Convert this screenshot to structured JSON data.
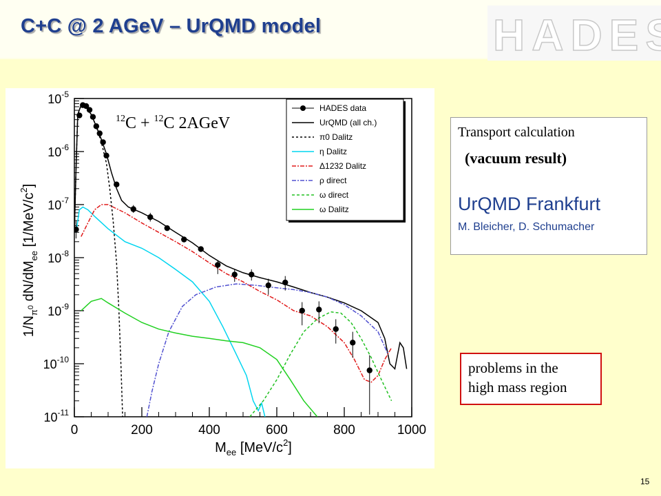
{
  "slide": {
    "title": "C+C @ 2 AGeV – UrQMD model",
    "logo_text": "HADES",
    "page_number": "15"
  },
  "note_box": {
    "line1": "Transport calculation",
    "line2": "(vacuum result)",
    "line3": "UrQMD Frankfurt",
    "line4": "M. Bleicher, D. Schumacher"
  },
  "problem_box": {
    "line1": "problems in the",
    "line2": "high mass region"
  },
  "colors": {
    "title": "#1f3f8f",
    "note_accent": "#1f3f8f",
    "problem_border": "#d01010",
    "background": "#ffffcc"
  },
  "chart_data": {
    "type": "line",
    "annotation": "12C + 12C   2AGeV",
    "xlabel": "M_ee [MeV/c2]",
    "ylabel": "1/N_pi0 dN/dM_ee [1/MeV/c2]",
    "xlim": [
      0,
      1000
    ],
    "ylim": [
      1e-11,
      1e-05
    ],
    "yscale": "log",
    "grid": false,
    "legend_position": "top-right",
    "x_ticks": [
      0,
      200,
      400,
      600,
      800,
      1000
    ],
    "y_ticks": [
      {
        "value": 1e-05,
        "base": "10",
        "exp": "-5"
      },
      {
        "value": 1e-06,
        "base": "10",
        "exp": "-6"
      },
      {
        "value": 1e-07,
        "base": "10",
        "exp": "-7"
      },
      {
        "value": 1e-08,
        "base": "10",
        "exp": "-8"
      },
      {
        "value": 1e-09,
        "base": "10",
        "exp": "-9"
      },
      {
        "value": 1e-10,
        "base": "10",
        "exp": "-10"
      },
      {
        "value": 1e-11,
        "base": "10",
        "exp": "-11"
      }
    ],
    "series": [
      {
        "name": "HADES data",
        "kind": "points",
        "color": "#000000",
        "points": [
          {
            "x": 5,
            "y": 3.4e-08
          },
          {
            "x": 15,
            "y": 4.8e-06
          },
          {
            "x": 25,
            "y": 7.5e-06
          },
          {
            "x": 35,
            "y": 7.2e-06
          },
          {
            "x": 45,
            "y": 6.1e-06
          },
          {
            "x": 55,
            "y": 4.5e-06
          },
          {
            "x": 65,
            "y": 3e-06
          },
          {
            "x": 75,
            "y": 2.2e-06
          },
          {
            "x": 85,
            "y": 1.5e-06
          },
          {
            "x": 95,
            "y": 8.4e-07
          },
          {
            "x": 125,
            "y": 2.4e-07
          },
          {
            "x": 175,
            "y": 8.2e-08
          },
          {
            "x": 225,
            "y": 5.8e-08
          },
          {
            "x": 275,
            "y": 3.6e-08
          },
          {
            "x": 325,
            "y": 2.2e-08
          },
          {
            "x": 375,
            "y": 1.45e-08
          },
          {
            "x": 425,
            "y": 7.3e-09
          },
          {
            "x": 475,
            "y": 4.8e-09
          },
          {
            "x": 525,
            "y": 4.8e-09
          },
          {
            "x": 575,
            "y": 3e-09
          },
          {
            "x": 625,
            "y": 3.4e-09
          },
          {
            "x": 675,
            "y": 1e-09
          },
          {
            "x": 725,
            "y": 1.05e-09
          },
          {
            "x": 775,
            "y": 4.5e-10
          },
          {
            "x": 825,
            "y": 2.5e-10
          },
          {
            "x": 875,
            "y": 7.5e-11
          }
        ],
        "err_up": [
          1.5e-08,
          0,
          0,
          0,
          0,
          0,
          0,
          0,
          0,
          0,
          0,
          1.6e-08,
          1.2e-08,
          0,
          0,
          0,
          1.7e-09,
          1.3e-09,
          1.2e-09,
          1e-09,
          1.1e-09,
          4.5e-10,
          4.5e-10,
          2.4e-10,
          1.5e-10,
          7e-11
        ],
        "err_down": [
          1.1e-08,
          0,
          0,
          0,
          0,
          0,
          0,
          0,
          0,
          0,
          0,
          1.2e-08,
          1e-08,
          0,
          0,
          0,
          2.4e-09,
          1.3e-09,
          1.1e-09,
          1e-09,
          1e-09,
          4.7e-10,
          4.7e-10,
          2.1e-10,
          1.2e-10,
          6.4e-11
        ]
      },
      {
        "name": "UrQMD (all ch.)",
        "kind": "line",
        "color": "#000000",
        "dash": "",
        "points": [
          {
            "x": 0,
            "y": 3e-08
          },
          {
            "x": 5,
            "y": 5e-07
          },
          {
            "x": 10,
            "y": 5e-06
          },
          {
            "x": 20,
            "y": 7.5e-06
          },
          {
            "x": 35,
            "y": 6.8e-06
          },
          {
            "x": 50,
            "y": 5e-06
          },
          {
            "x": 65,
            "y": 3e-06
          },
          {
            "x": 80,
            "y": 1.7e-06
          },
          {
            "x": 95,
            "y": 9e-07
          },
          {
            "x": 110,
            "y": 4e-07
          },
          {
            "x": 125,
            "y": 2e-07
          },
          {
            "x": 140,
            "y": 1.2e-07
          },
          {
            "x": 160,
            "y": 9e-08
          },
          {
            "x": 200,
            "y": 7e-08
          },
          {
            "x": 250,
            "y": 4.8e-08
          },
          {
            "x": 300,
            "y": 3e-08
          },
          {
            "x": 350,
            "y": 1.9e-08
          },
          {
            "x": 400,
            "y": 1.1e-08
          },
          {
            "x": 450,
            "y": 7e-09
          },
          {
            "x": 500,
            "y": 5.2e-09
          },
          {
            "x": 550,
            "y": 4.2e-09
          },
          {
            "x": 600,
            "y": 3.5e-09
          },
          {
            "x": 650,
            "y": 2.8e-09
          },
          {
            "x": 700,
            "y": 2.2e-09
          },
          {
            "x": 750,
            "y": 1.8e-09
          },
          {
            "x": 800,
            "y": 1.4e-09
          },
          {
            "x": 850,
            "y": 1e-09
          },
          {
            "x": 900,
            "y": 6e-10
          },
          {
            "x": 920,
            "y": 3e-10
          },
          {
            "x": 935,
            "y": 1e-10
          },
          {
            "x": 950,
            "y": 8e-11
          },
          {
            "x": 965,
            "y": 2.5e-10
          },
          {
            "x": 975,
            "y": 2e-10
          },
          {
            "x": 985,
            "y": 8e-11
          }
        ]
      },
      {
        "name": "π0 Dalitz",
        "kind": "line",
        "color": "#000000",
        "dash": "3,3",
        "points": [
          {
            "x": 0,
            "y": 3e-08
          },
          {
            "x": 5,
            "y": 5e-07
          },
          {
            "x": 10,
            "y": 5e-06
          },
          {
            "x": 20,
            "y": 7.5e-06
          },
          {
            "x": 35,
            "y": 6.8e-06
          },
          {
            "x": 50,
            "y": 5e-06
          },
          {
            "x": 65,
            "y": 3e-06
          },
          {
            "x": 80,
            "y": 1.5e-06
          },
          {
            "x": 95,
            "y": 6e-07
          },
          {
            "x": 105,
            "y": 2e-07
          },
          {
            "x": 115,
            "y": 5e-08
          },
          {
            "x": 125,
            "y": 8e-09
          },
          {
            "x": 132,
            "y": 1e-09
          },
          {
            "x": 138,
            "y": 1e-10
          },
          {
            "x": 143,
            "y": 1e-11
          }
        ]
      },
      {
        "name": "η Dalitz",
        "kind": "line",
        "color": "#00d5f0",
        "dash": "",
        "points": [
          {
            "x": 5,
            "y": 3e-08
          },
          {
            "x": 15,
            "y": 8e-08
          },
          {
            "x": 25,
            "y": 9e-08
          },
          {
            "x": 40,
            "y": 8e-08
          },
          {
            "x": 60,
            "y": 6e-08
          },
          {
            "x": 100,
            "y": 3.5e-08
          },
          {
            "x": 150,
            "y": 2e-08
          },
          {
            "x": 200,
            "y": 1.5e-08
          },
          {
            "x": 250,
            "y": 1e-08
          },
          {
            "x": 300,
            "y": 6e-09
          },
          {
            "x": 350,
            "y": 3.5e-09
          },
          {
            "x": 400,
            "y": 1.5e-09
          },
          {
            "x": 440,
            "y": 5e-10
          },
          {
            "x": 480,
            "y": 1.5e-10
          },
          {
            "x": 510,
            "y": 6e-11
          },
          {
            "x": 530,
            "y": 2e-11
          },
          {
            "x": 545,
            "y": 1.3e-11
          },
          {
            "x": 555,
            "y": 1.8e-11
          },
          {
            "x": 565,
            "y": 1e-11
          }
        ]
      },
      {
        "name": "Δ1232 Dalitz",
        "kind": "line",
        "color": "#e01818",
        "dash": "6,2,2,2",
        "points": [
          {
            "x": 20,
            "y": 2.5e-08
          },
          {
            "x": 40,
            "y": 4.5e-08
          },
          {
            "x": 60,
            "y": 8e-08
          },
          {
            "x": 80,
            "y": 1e-07
          },
          {
            "x": 100,
            "y": 1e-07
          },
          {
            "x": 150,
            "y": 7e-08
          },
          {
            "x": 200,
            "y": 4.5e-08
          },
          {
            "x": 250,
            "y": 3e-08
          },
          {
            "x": 300,
            "y": 2e-08
          },
          {
            "x": 350,
            "y": 1.3e-08
          },
          {
            "x": 400,
            "y": 8e-09
          },
          {
            "x": 450,
            "y": 5e-09
          },
          {
            "x": 500,
            "y": 3.5e-09
          },
          {
            "x": 550,
            "y": 2.3e-09
          },
          {
            "x": 600,
            "y": 1.6e-09
          },
          {
            "x": 650,
            "y": 1e-09
          },
          {
            "x": 700,
            "y": 8e-10
          },
          {
            "x": 750,
            "y": 5e-10
          },
          {
            "x": 800,
            "y": 2.5e-10
          },
          {
            "x": 830,
            "y": 1.2e-10
          },
          {
            "x": 860,
            "y": 5e-11
          },
          {
            "x": 880,
            "y": 4.5e-11
          },
          {
            "x": 900,
            "y": 6e-11
          },
          {
            "x": 920,
            "y": 1.2e-10
          },
          {
            "x": 940,
            "y": 2e-10
          }
        ]
      },
      {
        "name": "ρ direct",
        "kind": "line",
        "color": "#5050d0",
        "dash": "6,2,2,2",
        "points": [
          {
            "x": 215,
            "y": 1e-11
          },
          {
            "x": 230,
            "y": 3e-11
          },
          {
            "x": 250,
            "y": 1e-10
          },
          {
            "x": 280,
            "y": 4e-10
          },
          {
            "x": 320,
            "y": 1.2e-09
          },
          {
            "x": 360,
            "y": 2e-09
          },
          {
            "x": 420,
            "y": 2.8e-09
          },
          {
            "x": 480,
            "y": 3.2e-09
          },
          {
            "x": 540,
            "y": 3e-09
          },
          {
            "x": 600,
            "y": 2.7e-09
          },
          {
            "x": 650,
            "y": 2.5e-09
          },
          {
            "x": 700,
            "y": 2.2e-09
          },
          {
            "x": 750,
            "y": 1.8e-09
          },
          {
            "x": 800,
            "y": 1.3e-09
          },
          {
            "x": 850,
            "y": 8e-10
          },
          {
            "x": 900,
            "y": 4e-10
          },
          {
            "x": 930,
            "y": 1.5e-10
          }
        ]
      },
      {
        "name": "ω direct",
        "kind": "line",
        "color": "#20c020",
        "dash": "4,3",
        "points": [
          {
            "x": 520,
            "y": 1e-11
          },
          {
            "x": 560,
            "y": 2e-11
          },
          {
            "x": 600,
            "y": 5e-11
          },
          {
            "x": 640,
            "y": 1.5e-10
          },
          {
            "x": 680,
            "y": 4e-10
          },
          {
            "x": 720,
            "y": 7e-10
          },
          {
            "x": 760,
            "y": 9.5e-10
          },
          {
            "x": 790,
            "y": 9e-10
          },
          {
            "x": 820,
            "y": 6e-10
          },
          {
            "x": 850,
            "y": 3e-10
          },
          {
            "x": 880,
            "y": 1.3e-10
          },
          {
            "x": 910,
            "y": 5e-11
          },
          {
            "x": 940,
            "y": 2e-11
          }
        ]
      },
      {
        "name": "ω Dalitz",
        "kind": "line",
        "color": "#20d020",
        "dash": "",
        "points": [
          {
            "x": 20,
            "y": 1e-09
          },
          {
            "x": 50,
            "y": 1.5e-09
          },
          {
            "x": 80,
            "y": 1.7e-09
          },
          {
            "x": 100,
            "y": 1.4e-09
          },
          {
            "x": 150,
            "y": 9e-10
          },
          {
            "x": 200,
            "y": 6e-10
          },
          {
            "x": 250,
            "y": 4.5e-10
          },
          {
            "x": 300,
            "y": 3.8e-10
          },
          {
            "x": 350,
            "y": 3.3e-10
          },
          {
            "x": 400,
            "y": 3e-10
          },
          {
            "x": 450,
            "y": 2.7e-10
          },
          {
            "x": 500,
            "y": 2.5e-10
          },
          {
            "x": 550,
            "y": 2e-10
          },
          {
            "x": 600,
            "y": 1.2e-10
          },
          {
            "x": 640,
            "y": 5e-11
          },
          {
            "x": 680,
            "y": 2e-11
          },
          {
            "x": 720,
            "y": 1e-11
          }
        ]
      }
    ]
  }
}
